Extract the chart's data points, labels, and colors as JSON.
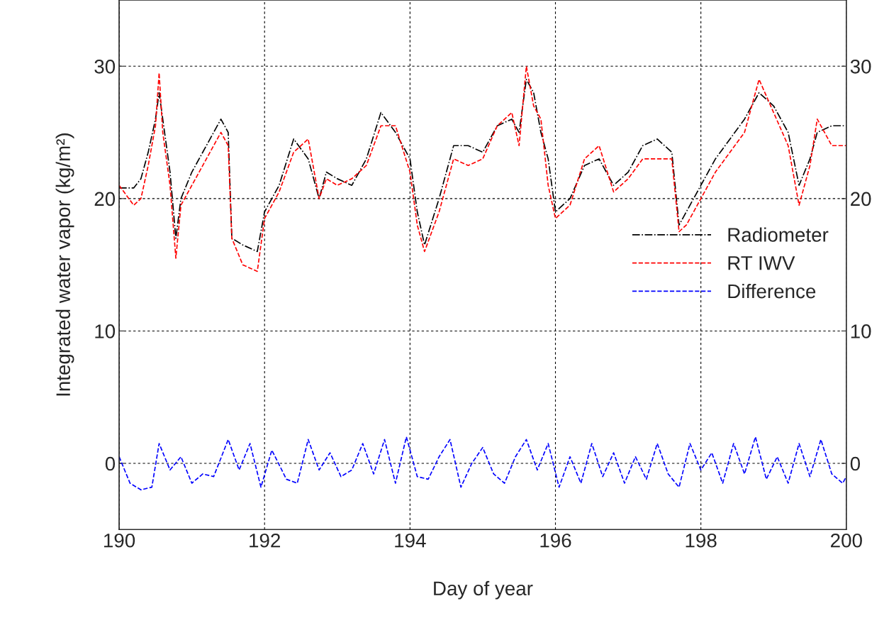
{
  "chart_data": {
    "type": "line",
    "xlabel": "Day of year",
    "ylabel": "Integrated water vapor (kg/m²)",
    "xlim": [
      190,
      200
    ],
    "xticks": [
      190,
      192,
      194,
      196,
      198,
      200
    ],
    "ylim": [
      -5,
      35
    ],
    "yticks": [
      0,
      10,
      20,
      30
    ],
    "y2lim": [
      -5,
      35
    ],
    "y2ticks": [
      0,
      10,
      20,
      30
    ],
    "grid": true,
    "legend": "right",
    "marker": "none",
    "series": [
      {
        "name": "Radiometer",
        "color": "#000000",
        "line_style": "dashdot",
        "x": [
          190.0,
          190.2,
          190.3,
          190.4,
          190.5,
          190.55,
          190.6,
          190.7,
          190.78,
          190.85,
          191.0,
          191.2,
          191.4,
          191.5,
          191.55,
          191.7,
          191.9,
          192.0,
          192.2,
          192.4,
          192.6,
          192.75,
          192.85,
          193.0,
          193.2,
          193.4,
          193.6,
          193.8,
          194.0,
          194.1,
          194.2,
          194.4,
          194.5,
          194.6,
          194.8,
          195.0,
          195.2,
          195.4,
          195.5,
          195.6,
          195.7,
          195.8,
          195.9,
          196.0,
          196.2,
          196.4,
          196.6,
          196.8,
          197.0,
          197.2,
          197.4,
          197.6,
          197.7,
          197.8,
          198.0,
          198.2,
          198.4,
          198.6,
          198.8,
          199.0,
          199.2,
          199.35,
          199.5,
          199.6,
          199.8,
          200.0
        ],
        "values": [
          20.8,
          20.8,
          21.5,
          23.5,
          26,
          28,
          26,
          22,
          17,
          20,
          22,
          24,
          26,
          25,
          17,
          16.5,
          16,
          19,
          21,
          24.5,
          23,
          20,
          22,
          21.5,
          21,
          23,
          26.5,
          25,
          23,
          19,
          16.5,
          20,
          22,
          24,
          24,
          23.5,
          25.5,
          26,
          25,
          29,
          28,
          25,
          23,
          19,
          20,
          22.5,
          23,
          21,
          22,
          24,
          24.5,
          23.5,
          18,
          19,
          21,
          23,
          24.5,
          26,
          28,
          27,
          25,
          21,
          23,
          25,
          25.5,
          25.5
        ]
      },
      {
        "name": "RT IWV",
        "color": "#ff0000",
        "line_style": "dashed",
        "x": [
          190.0,
          190.2,
          190.3,
          190.4,
          190.5,
          190.55,
          190.6,
          190.7,
          190.78,
          190.85,
          191.0,
          191.2,
          191.4,
          191.5,
          191.55,
          191.7,
          191.9,
          192.0,
          192.2,
          192.4,
          192.6,
          192.75,
          192.85,
          193.0,
          193.2,
          193.4,
          193.6,
          193.8,
          194.0,
          194.1,
          194.2,
          194.4,
          194.5,
          194.6,
          194.8,
          195.0,
          195.2,
          195.4,
          195.5,
          195.6,
          195.7,
          195.8,
          195.9,
          196.0,
          196.2,
          196.4,
          196.6,
          196.8,
          197.0,
          197.2,
          197.4,
          197.6,
          197.7,
          197.8,
          198.0,
          198.2,
          198.4,
          198.6,
          198.8,
          199.0,
          199.2,
          199.35,
          199.5,
          199.6,
          199.8,
          200.0
        ],
        "values": [
          21,
          19.5,
          20,
          22.5,
          25.5,
          29.5,
          25,
          21,
          15.5,
          19.5,
          21,
          23,
          25,
          24,
          17,
          15,
          14.5,
          18.5,
          20.5,
          23.5,
          24.5,
          20,
          21.5,
          21,
          21.5,
          22.5,
          25.5,
          25.5,
          22,
          18,
          16,
          19,
          21,
          23,
          22.5,
          23,
          25.5,
          26.5,
          24,
          30,
          27,
          26,
          21,
          18.5,
          19.5,
          23,
          24,
          20.5,
          21.5,
          23,
          23,
          23,
          17.5,
          18,
          20,
          22,
          23.5,
          25,
          29,
          26.5,
          24,
          19.5,
          22.5,
          26,
          24,
          24
        ]
      },
      {
        "name": "Difference",
        "color": "#0000ff",
        "line_style": "dashed",
        "x": [
          190.0,
          190.15,
          190.3,
          190.45,
          190.55,
          190.7,
          190.85,
          191.0,
          191.15,
          191.3,
          191.5,
          191.65,
          191.8,
          191.95,
          192.1,
          192.3,
          192.45,
          192.6,
          192.75,
          192.9,
          193.05,
          193.2,
          193.35,
          193.5,
          193.65,
          193.8,
          193.95,
          194.1,
          194.25,
          194.4,
          194.55,
          194.7,
          194.85,
          195.0,
          195.15,
          195.3,
          195.45,
          195.6,
          195.75,
          195.9,
          196.05,
          196.2,
          196.35,
          196.5,
          196.65,
          196.8,
          196.95,
          197.1,
          197.25,
          197.4,
          197.55,
          197.7,
          197.85,
          198.0,
          198.15,
          198.3,
          198.45,
          198.6,
          198.75,
          198.9,
          199.05,
          199.2,
          199.35,
          199.5,
          199.65,
          199.8,
          199.95,
          200.0
        ],
        "values": [
          0.5,
          -1.5,
          -2,
          -1.8,
          1.5,
          -0.5,
          0.5,
          -1.5,
          -0.8,
          -1,
          1.8,
          -0.5,
          1.5,
          -1.8,
          1,
          -1.2,
          -1.5,
          1.8,
          -0.5,
          0.8,
          -1,
          -0.5,
          1.5,
          -0.8,
          1.8,
          -1.5,
          2,
          -1,
          -1.2,
          0.5,
          1.8,
          -1.8,
          0,
          1.2,
          -0.8,
          -1.5,
          0.5,
          1.8,
          -0.5,
          1.5,
          -1.8,
          0.5,
          -1.5,
          1.5,
          -1,
          0.8,
          -1.5,
          0.5,
          -1.2,
          1.5,
          -0.8,
          -1.8,
          1.5,
          -0.5,
          0.8,
          -1.5,
          1.5,
          -0.8,
          2,
          -1.2,
          0.5,
          -1.5,
          1.5,
          -1,
          1.8,
          -0.8,
          -1.5,
          -1
        ]
      }
    ]
  }
}
